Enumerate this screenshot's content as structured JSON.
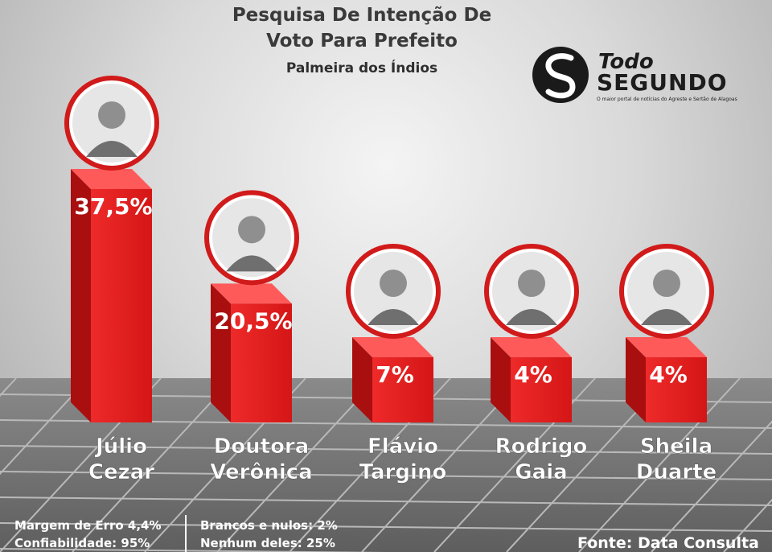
{
  "title_line1": "Pesquisa De Intenção De",
  "title_line2": "Voto Para Prefeito",
  "subtitle": "Palmeira dos Índios",
  "logo": {
    "line1": "Todo",
    "line2": "SEGUNDO",
    "tagline": "O maior portal de notícias do Agreste e Sertão de Alagoas"
  },
  "footer": {
    "margin": "Margem de Erro 4,4%",
    "confidence": "Confiabilidade: 95%",
    "blank": "Brancos e nulos: 2%",
    "none": "Nenhum deles: 25%",
    "source": "Fonte: Data Consulta"
  },
  "colors": {
    "bar_front": "#e02020",
    "bar_side": "#a90f0f",
    "bar_top": "#ff5a5a",
    "ring": "#d11a1a"
  },
  "chart_data": {
    "type": "bar",
    "categories": [
      "Júlio Cezar",
      "Doutora Verônica",
      "Flávio Targino",
      "Rodrigo Gaia",
      "Sheila Duarte"
    ],
    "name_lines": [
      [
        "Júlio",
        "Cezar"
      ],
      [
        "Doutora",
        "Verônica"
      ],
      [
        "Flávio",
        "Targino"
      ],
      [
        "Rodrigo",
        "Gaia"
      ],
      [
        "Sheila",
        "Duarte"
      ]
    ],
    "values": [
      37.5,
      20.5,
      7,
      4,
      4
    ],
    "labels": [
      "37,5%",
      "20,5%",
      "7%",
      "4%",
      "4%"
    ],
    "ylim": [
      0,
      40
    ]
  }
}
